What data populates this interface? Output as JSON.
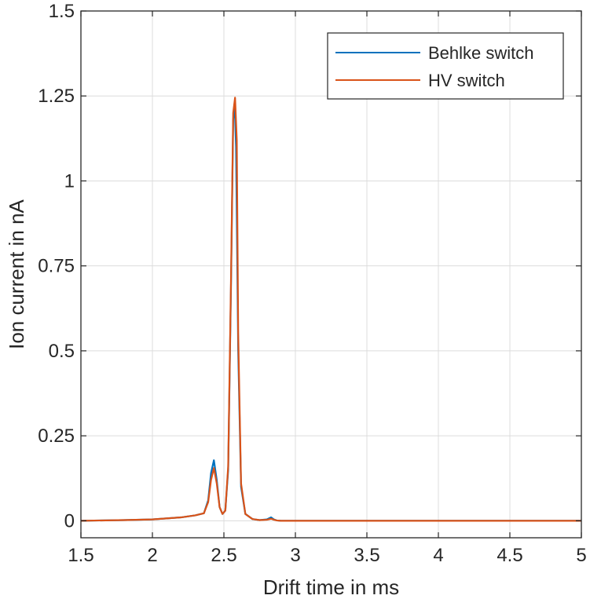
{
  "chart_data": {
    "type": "line",
    "title": "",
    "xlabel": "Drift time in ms",
    "ylabel": "Ion current in nA",
    "xlim": [
      1.5,
      5
    ],
    "ylim": [
      -0.05,
      1.5
    ],
    "xticks": [
      1.5,
      2,
      2.5,
      3,
      3.5,
      4,
      4.5,
      5
    ],
    "xtick_labels": [
      "1.5",
      "2",
      "2.5",
      "3",
      "3.5",
      "4",
      "4.5",
      "5"
    ],
    "yticks": [
      0,
      0.25,
      0.5,
      0.75,
      1,
      1.25,
      1.5
    ],
    "ytick_labels": [
      "0",
      "0.25",
      "0.5",
      "0.75",
      "1",
      "1.25",
      "1.5"
    ],
    "grid": true,
    "legend_position": "top-right",
    "series": [
      {
        "name": "Behlke switch",
        "color": "#0072BD",
        "x": [
          1.5,
          1.8,
          2.0,
          2.2,
          2.3,
          2.36,
          2.39,
          2.41,
          2.43,
          2.45,
          2.47,
          2.49,
          2.51,
          2.53,
          2.55,
          2.565,
          2.575,
          2.585,
          2.6,
          2.62,
          2.65,
          2.7,
          2.75,
          2.8,
          2.83,
          2.85,
          2.87,
          2.9,
          3.0,
          3.5,
          4.0,
          4.5,
          5.0
        ],
        "y": [
          0,
          0.002,
          0.004,
          0.01,
          0.016,
          0.022,
          0.06,
          0.14,
          0.178,
          0.12,
          0.04,
          0.02,
          0.03,
          0.15,
          0.7,
          1.18,
          1.23,
          1.1,
          0.5,
          0.1,
          0.02,
          0.005,
          0.002,
          0.004,
          0.01,
          0.004,
          0.001,
          0,
          0,
          0,
          0,
          0,
          0
        ]
      },
      {
        "name": "HV switch",
        "color": "#D95319",
        "x": [
          1.5,
          1.8,
          2.0,
          2.2,
          2.3,
          2.36,
          2.39,
          2.41,
          2.43,
          2.45,
          2.47,
          2.49,
          2.51,
          2.53,
          2.55,
          2.565,
          2.578,
          2.59,
          2.6,
          2.62,
          2.65,
          2.7,
          2.75,
          2.8,
          2.83,
          2.85,
          2.87,
          2.9,
          3.0,
          3.5,
          4.0,
          4.5,
          5.0
        ],
        "y": [
          0,
          0.002,
          0.004,
          0.01,
          0.016,
          0.022,
          0.055,
          0.12,
          0.155,
          0.11,
          0.04,
          0.02,
          0.03,
          0.16,
          0.72,
          1.2,
          1.245,
          1.12,
          0.55,
          0.11,
          0.02,
          0.005,
          0.002,
          0.003,
          0.006,
          0.003,
          0.001,
          0,
          0,
          0,
          0,
          0,
          0
        ]
      }
    ]
  }
}
